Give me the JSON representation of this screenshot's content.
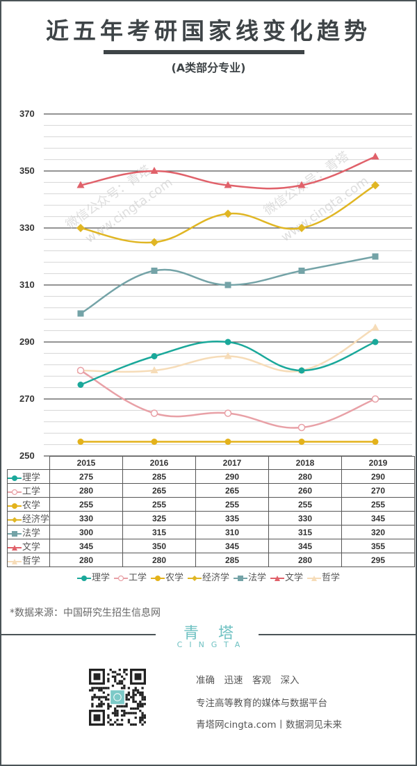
{
  "header": {
    "title": "近五年考研国家线变化趋势",
    "subtitle": "(A类部分专业)"
  },
  "watermark": {
    "line1": "微信公众号：青塔",
    "line2": "www.cingta.com"
  },
  "chart_data": {
    "type": "line",
    "title": "近五年考研国家线变化趋势",
    "subtitle": "(A类部分专业)",
    "xlabel": "",
    "ylabel": "",
    "categories": [
      "2015",
      "2016",
      "2017",
      "2018",
      "2019"
    ],
    "ylim": [
      250,
      370
    ],
    "yticks": [
      "250",
      "270",
      "290",
      "310",
      "330",
      "350",
      "370"
    ],
    "grid": true,
    "legend_position": "bottom",
    "series": [
      {
        "name": "理学",
        "values": [
          275,
          285,
          290,
          280,
          290
        ],
        "color": "#1aa89a",
        "marker": "circle"
      },
      {
        "name": "工学",
        "values": [
          280,
          265,
          265,
          260,
          270
        ],
        "color": "#e8a0a6",
        "marker": "circle-open"
      },
      {
        "name": "农学",
        "values": [
          255,
          255,
          255,
          255,
          255
        ],
        "color": "#e3b21b",
        "marker": "circle"
      },
      {
        "name": "经济学",
        "values": [
          330,
          325,
          335,
          330,
          345
        ],
        "color": "#e0b624",
        "marker": "diamond"
      },
      {
        "name": "法学",
        "values": [
          300,
          315,
          310,
          315,
          320
        ],
        "color": "#74a3a7",
        "marker": "square"
      },
      {
        "name": "文学",
        "values": [
          345,
          350,
          345,
          345,
          355
        ],
        "color": "#e0616a",
        "marker": "triangle"
      },
      {
        "name": "哲学",
        "values": [
          280,
          280,
          285,
          280,
          295
        ],
        "color": "#f6dcb8",
        "marker": "triangle"
      }
    ]
  },
  "table": {
    "rows": [
      {
        "label": "理学",
        "values": [
          "275",
          "285",
          "290",
          "280",
          "290"
        ]
      },
      {
        "label": "工学",
        "values": [
          "280",
          "265",
          "265",
          "260",
          "270"
        ]
      },
      {
        "label": "农学",
        "values": [
          "255",
          "255",
          "255",
          "255",
          "255"
        ]
      },
      {
        "label": "经济学",
        "values": [
          "330",
          "325",
          "335",
          "330",
          "345"
        ]
      },
      {
        "label": "法学",
        "values": [
          "300",
          "315",
          "310",
          "315",
          "320"
        ]
      },
      {
        "label": "文学",
        "values": [
          "345",
          "350",
          "345",
          "345",
          "355"
        ]
      },
      {
        "label": "哲学",
        "values": [
          "280",
          "280",
          "285",
          "280",
          "295"
        ]
      }
    ]
  },
  "footer": {
    "source": "*数据来源：中国研究生招生信息网",
    "logo_cn": "青塔",
    "logo_en": "CINGTA",
    "slogan1": "准确　迅速　客观　深入",
    "slogan2": "专注高等教育的媒体与数据平台",
    "slogan3": "青塔网cingta.com丨数据洞见未来",
    "qr_icon": "qr-code-icon"
  }
}
